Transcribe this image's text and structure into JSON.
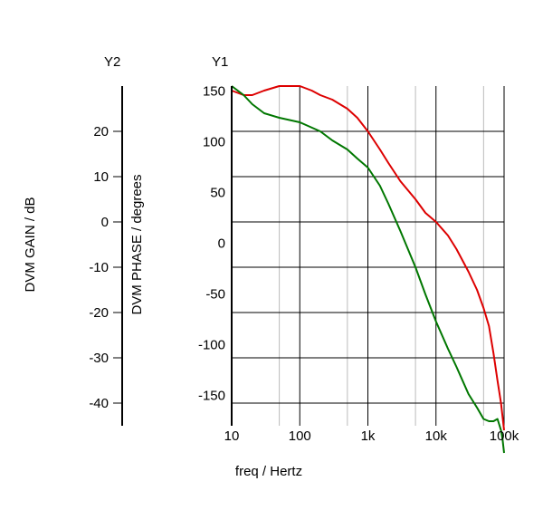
{
  "chart_data": {
    "type": "line",
    "xlabel": "freq / Hertz",
    "x_scale": "log",
    "xlim": [
      10,
      100000
    ],
    "x_tick_labels": [
      "10",
      "100",
      "1k",
      "10k",
      "100k"
    ],
    "x_tick_values": [
      10,
      100,
      1000,
      10000,
      100000
    ],
    "y1": {
      "axis_title": "Y1",
      "label": "DVM PHASE / degrees",
      "ylim": [
        -180,
        155
      ],
      "ticks": [
        150,
        100,
        50,
        0,
        -50,
        -100,
        -150
      ]
    },
    "y2": {
      "axis_title": "Y2",
      "label": "DVM GAIN / dB",
      "ylim": [
        -45,
        30
      ],
      "ticks": [
        20,
        10,
        0,
        -10,
        -20,
        -30,
        -40
      ]
    },
    "grid": true,
    "series": [
      {
        "axis": "y2",
        "color": "#dd0000",
        "x": [
          10,
          15,
          20,
          30,
          50,
          70,
          100,
          150,
          200,
          300,
          500,
          700,
          1000,
          1500,
          2000,
          3000,
          5000,
          7000,
          10000,
          15000,
          20000,
          30000,
          40000,
          50000,
          60000,
          70000,
          80000,
          90000,
          95000,
          100000
        ],
        "values": [
          29,
          28,
          28,
          29,
          30,
          30,
          30,
          29,
          28,
          27,
          25,
          23,
          20,
          16,
          13,
          9,
          5,
          2,
          0,
          -3,
          -6,
          -11,
          -15,
          -19,
          -23,
          -29,
          -35,
          -40,
          -43,
          -46
        ]
      },
      {
        "axis": "y2",
        "color": "#007700",
        "x": [
          10,
          15,
          20,
          30,
          50,
          100,
          200,
          300,
          500,
          700,
          1000,
          1500,
          2000,
          3000,
          5000,
          7000,
          10000,
          15000,
          20000,
          30000,
          40000,
          50000,
          60000,
          70000,
          80000,
          90000,
          95000,
          100000
        ],
        "values": [
          30,
          28,
          26,
          24,
          23,
          22,
          20,
          18,
          16,
          14,
          12,
          8,
          4,
          -2,
          -10,
          -16,
          -22,
          -28,
          -32,
          -38,
          -41,
          -43.5,
          -44,
          -44,
          -43.5,
          -46,
          -48,
          -51
        ]
      }
    ]
  }
}
